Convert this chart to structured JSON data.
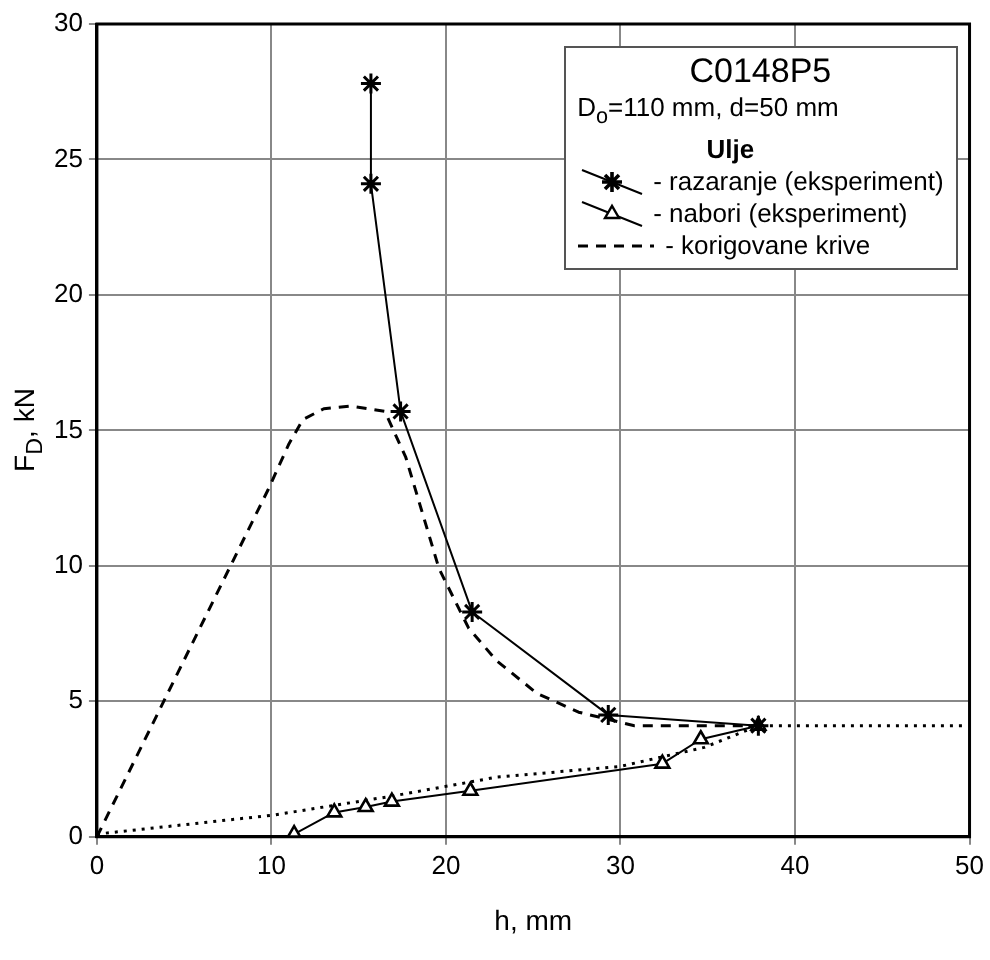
{
  "chart_data": {
    "type": "scatter",
    "xlabel": "h, mm",
    "ylabel": "F$_{D}$, kN",
    "legend_title": "C0148P5",
    "annotations": [
      "D$_{o}$=110 mm, d=50 mm",
      "Ulje"
    ],
    "xlim": [
      0,
      50
    ],
    "xticks": [
      0,
      10,
      20,
      30,
      40,
      50
    ],
    "ylim": [
      0,
      30
    ],
    "yticks": [
      0,
      5,
      10,
      15,
      20,
      25,
      30
    ],
    "grid": true,
    "legend": "top right",
    "series": [
      {
        "name": "- razaranje (eksperiment)",
        "type": "line",
        "color": "#000000",
        "marker": "cross",
        "line_style": "solid",
        "x": [
          15.7,
          15.7,
          17.4,
          21.5,
          29.3,
          37.9
        ],
        "values": [
          27.8,
          24.1,
          15.7,
          8.3,
          4.5,
          4.1
        ]
      },
      {
        "name": "- nabori (eksperiment)",
        "type": "line",
        "color": "#000000",
        "marker": "triangle",
        "line_style": "solid",
        "x": [
          11.3,
          13.6,
          15.4,
          16.9,
          21.4,
          32.4,
          34.6,
          37.9
        ],
        "values": [
          0.1,
          0.9,
          1.1,
          1.3,
          1.7,
          2.7,
          3.6,
          4.1
        ]
      },
      {
        "name": "- korigovane krive",
        "type": "line",
        "color": "#000000",
        "marker": "none",
        "line_style": "dashed",
        "x": [
          0,
          9.8,
          11,
          11.8,
          13,
          14.5,
          16.5,
          17.7,
          19.6,
          21.3,
          22.9,
          25.2,
          27.6,
          30.8,
          34.8,
          37.9
        ],
        "values": [
          0,
          12.8,
          14.5,
          15.4,
          15.8,
          15.9,
          15.7,
          14,
          9.9,
          7.7,
          6.5,
          5.3,
          4.6,
          4.1,
          4.1,
          4.1
        ]
      },
      {
        "type": "line",
        "color": "#000000",
        "marker": "none",
        "line_style": "dotted",
        "x": [
          0,
          10.1,
          16.9,
          22.9,
          30,
          34.8,
          37.9,
          49.6
        ],
        "values": [
          0.1,
          0.8,
          1.5,
          2.2,
          2.6,
          3.3,
          4.1,
          4.1
        ]
      }
    ]
  }
}
